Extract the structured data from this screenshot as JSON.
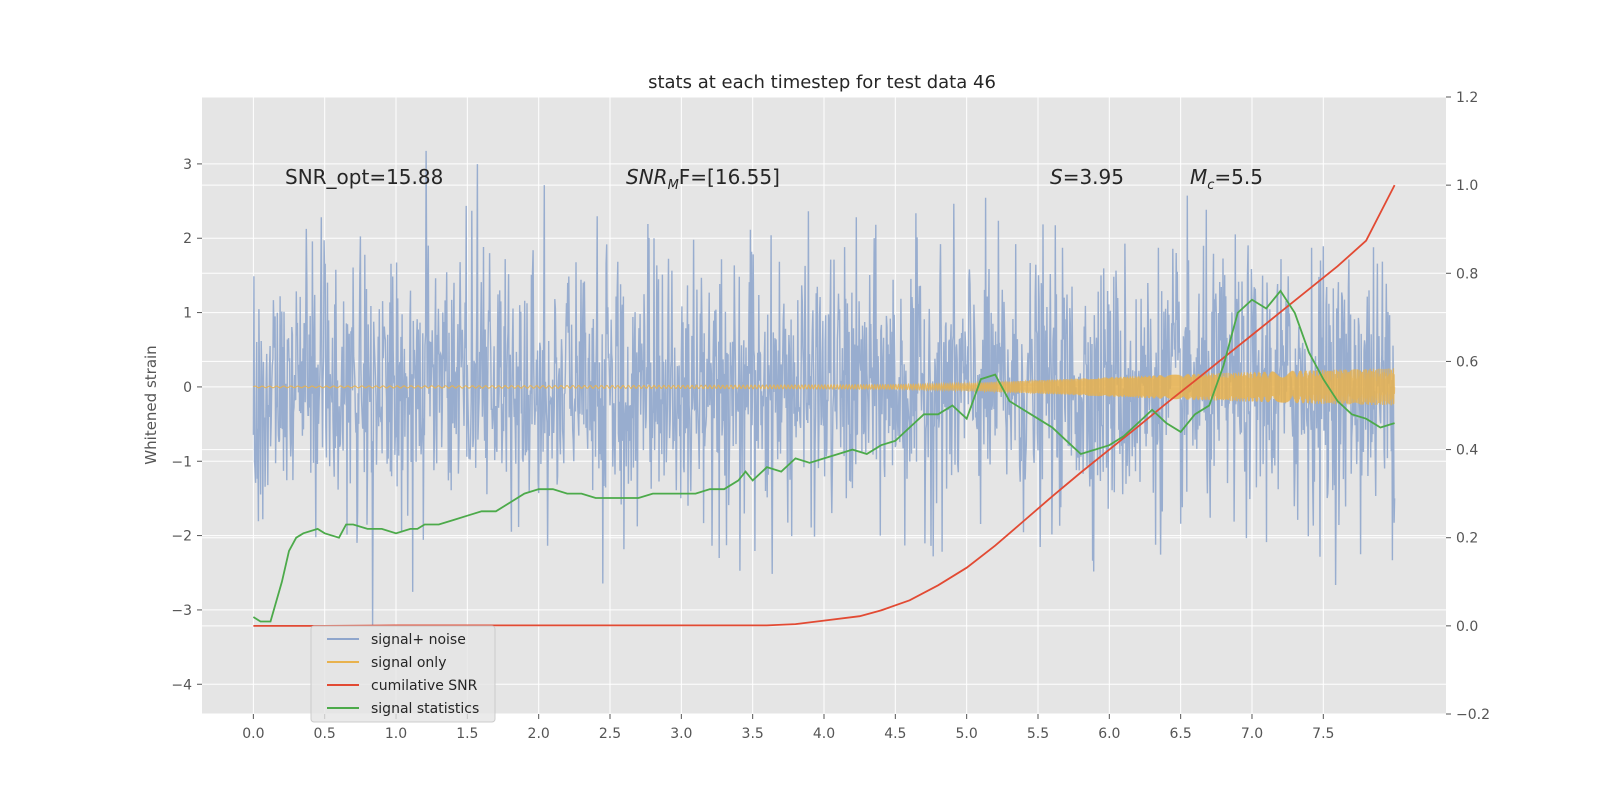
{
  "chart_data": {
    "type": "line",
    "title": "stats at each timestep for test data 46",
    "ylabel": "Whitened strain",
    "xlabel": "",
    "xlim": [
      -0.36,
      8.36
    ],
    "ylim": [
      -4.4,
      3.9
    ],
    "y2lim": [
      -0.2,
      1.2
    ],
    "xticks": [
      "0.0",
      "0.5",
      "1.0",
      "1.5",
      "2.0",
      "2.5",
      "3.0",
      "3.5",
      "4.0",
      "4.5",
      "5.0",
      "5.5",
      "6.0",
      "6.5",
      "7.0",
      "7.5"
    ],
    "yticks": [
      "3",
      "2",
      "1",
      "0",
      "−1",
      "−2",
      "−3",
      "−4"
    ],
    "y2ticks": [
      "1.2",
      "1.0",
      "0.8",
      "0.6",
      "0.4",
      "0.2",
      "0.0",
      "−0.2"
    ],
    "grid": true,
    "legend_position": "lower-left",
    "colors": {
      "background": "#e5e5e5",
      "grid": "#ffffff",
      "signal_noise": "#8fa6cc",
      "signal_only": "#e8b24e",
      "cumulative_snr": "#e24a33",
      "signal_statistics": "#4caa4a"
    },
    "annotations": {
      "snr_opt": "SNR_opt=15.88",
      "snr_mf_base": "SNR",
      "snr_mf_sub": "M",
      "snr_mf_rest": "F=[16.55]",
      "s_base": "S",
      "s_rest": "=3.95",
      "mc_base": "M",
      "mc_sub": "c",
      "mc_rest": "=5.5"
    },
    "series": [
      {
        "name": "signal+ noise",
        "axis": "left",
        "sample_rate": 256,
        "t_start": 0.0,
        "t_end": 8.0,
        "noise_sigma": 0.85,
        "approx_range": [
          -4.0,
          3.6
        ],
        "note_visible": "dense noisy trace spanning the full time range"
      },
      {
        "name": "signal only",
        "axis": "left",
        "envelope": {
          "t": [
            0.0,
            3.0,
            4.5,
            5.0,
            5.5,
            6.0,
            6.5,
            7.0,
            7.5,
            8.0
          ],
          "amp": [
            0.01,
            0.02,
            0.03,
            0.05,
            0.09,
            0.13,
            0.17,
            0.2,
            0.23,
            0.25
          ]
        }
      },
      {
        "name": "cumilative SNR",
        "axis": "right",
        "x": [
          0.0,
          0.5,
          1.0,
          1.5,
          2.0,
          2.5,
          3.0,
          3.5,
          3.6,
          3.8,
          4.0,
          4.25,
          4.4,
          4.6,
          4.8,
          5.0,
          5.2,
          5.4,
          5.6,
          5.8,
          6.0,
          6.2,
          6.4,
          6.6,
          6.8,
          7.0,
          7.2,
          7.4,
          7.6,
          7.8,
          8.0
        ],
        "values": [
          0.0,
          0.0,
          0.001,
          0.001,
          0.001,
          0.001,
          0.001,
          0.001,
          0.001,
          0.004,
          0.012,
          0.022,
          0.035,
          0.058,
          0.092,
          0.132,
          0.182,
          0.238,
          0.294,
          0.348,
          0.4,
          0.452,
          0.505,
          0.556,
          0.608,
          0.66,
          0.712,
          0.764,
          0.816,
          0.874,
          1.0
        ]
      },
      {
        "name": "signal statistics",
        "axis": "right",
        "x": [
          0.0,
          0.05,
          0.12,
          0.2,
          0.25,
          0.3,
          0.35,
          0.45,
          0.5,
          0.6,
          0.65,
          0.7,
          0.8,
          0.9,
          1.0,
          1.1,
          1.15,
          1.2,
          1.3,
          1.4,
          1.5,
          1.6,
          1.7,
          1.8,
          1.9,
          2.0,
          2.1,
          2.2,
          2.3,
          2.4,
          2.5,
          2.6,
          2.7,
          2.8,
          2.9,
          3.0,
          3.1,
          3.2,
          3.3,
          3.4,
          3.45,
          3.5,
          3.6,
          3.7,
          3.8,
          3.9,
          4.0,
          4.1,
          4.2,
          4.3,
          4.4,
          4.5,
          4.6,
          4.7,
          4.8,
          4.9,
          5.0,
          5.1,
          5.2,
          5.3,
          5.4,
          5.5,
          5.6,
          5.7,
          5.8,
          5.9,
          6.0,
          6.1,
          6.2,
          6.3,
          6.4,
          6.5,
          6.6,
          6.7,
          6.8,
          6.9,
          7.0,
          7.1,
          7.2,
          7.3,
          7.4,
          7.5,
          7.6,
          7.7,
          7.8,
          7.9,
          8.0
        ],
        "values": [
          0.02,
          0.01,
          0.01,
          0.1,
          0.17,
          0.2,
          0.21,
          0.22,
          0.21,
          0.2,
          0.23,
          0.23,
          0.22,
          0.22,
          0.21,
          0.22,
          0.22,
          0.23,
          0.23,
          0.24,
          0.25,
          0.26,
          0.26,
          0.28,
          0.3,
          0.31,
          0.31,
          0.3,
          0.3,
          0.29,
          0.29,
          0.29,
          0.29,
          0.3,
          0.3,
          0.3,
          0.3,
          0.31,
          0.31,
          0.33,
          0.35,
          0.33,
          0.36,
          0.35,
          0.38,
          0.37,
          0.38,
          0.39,
          0.4,
          0.39,
          0.41,
          0.42,
          0.45,
          0.48,
          0.48,
          0.5,
          0.47,
          0.56,
          0.57,
          0.51,
          0.49,
          0.47,
          0.45,
          0.42,
          0.39,
          0.4,
          0.41,
          0.43,
          0.46,
          0.49,
          0.46,
          0.44,
          0.48,
          0.5,
          0.59,
          0.71,
          0.74,
          0.72,
          0.76,
          0.71,
          0.62,
          0.56,
          0.51,
          0.48,
          0.47,
          0.45,
          0.46
        ]
      }
    ],
    "legend": [
      "signal+ noise",
      "signal only",
      "cumilative SNR",
      "signal statistics"
    ]
  }
}
